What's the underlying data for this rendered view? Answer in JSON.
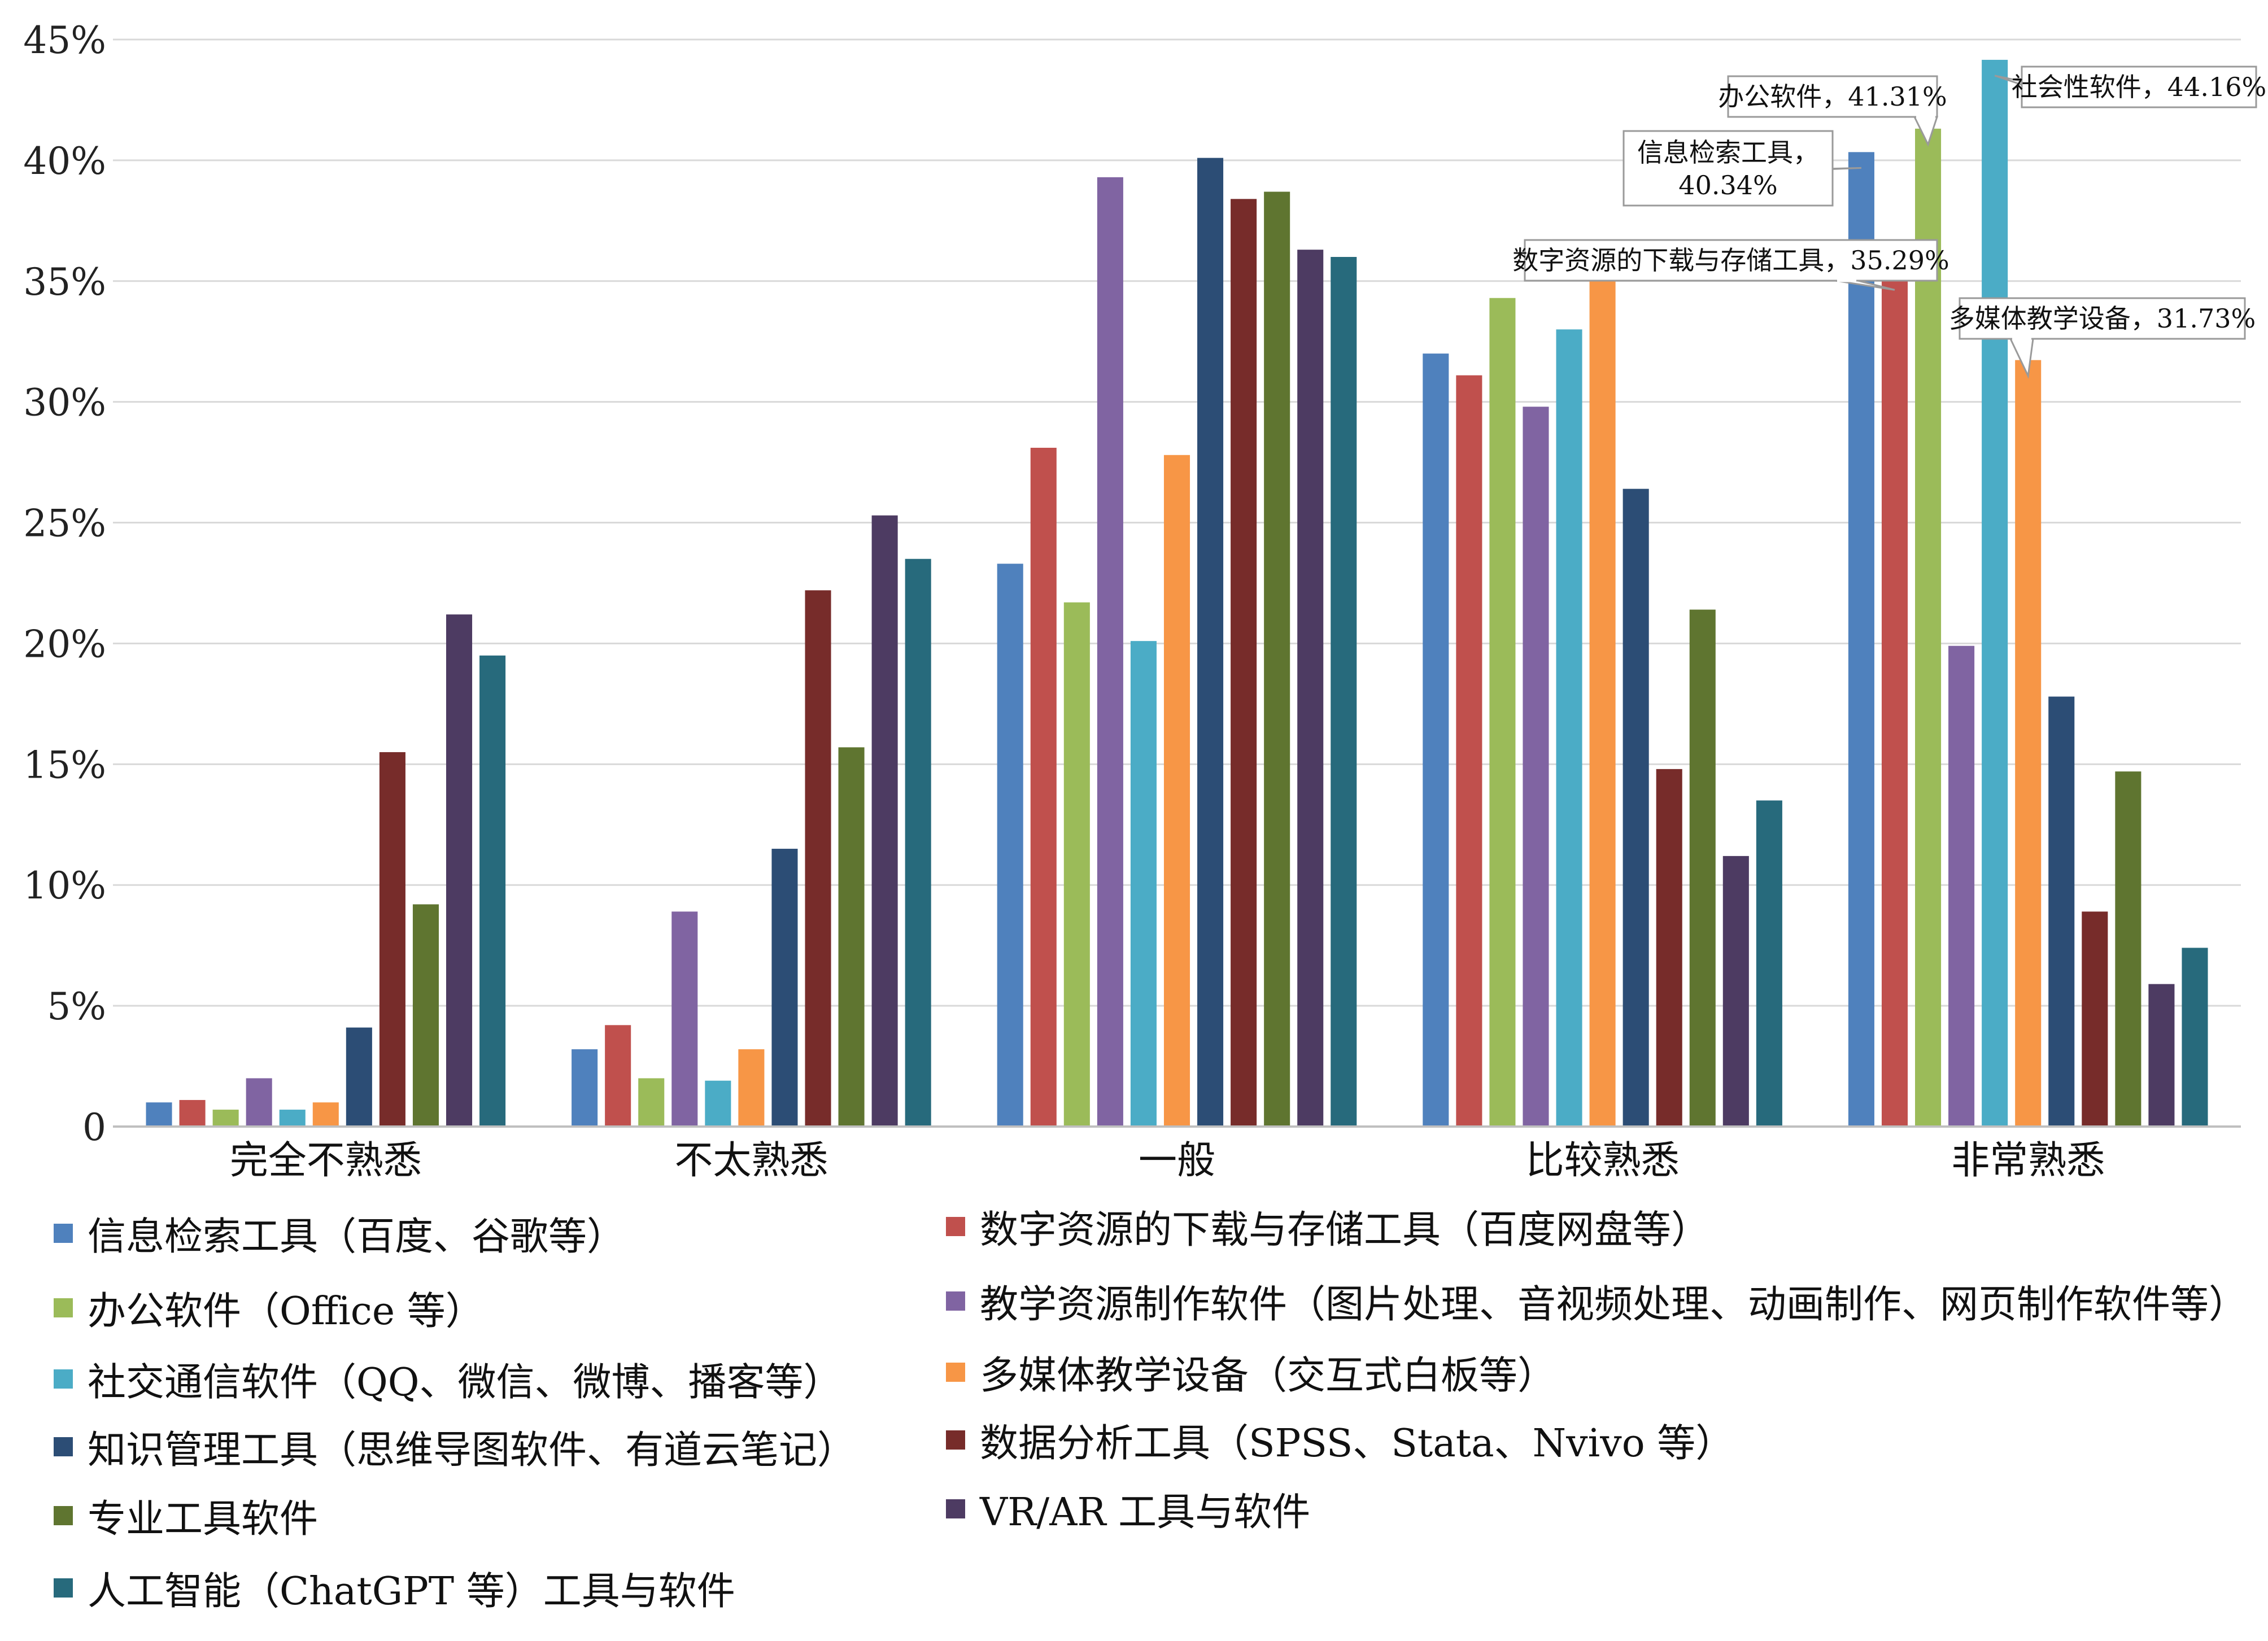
{
  "chart_data": {
    "type": "bar",
    "title": "",
    "xlabel": "",
    "ylabel": "",
    "ylim": [
      0,
      45
    ],
    "y_ticks": [
      {
        "value": 0,
        "label": "0"
      },
      {
        "value": 5,
        "label": "5%"
      },
      {
        "value": 10,
        "label": "10%"
      },
      {
        "value": 15,
        "label": "15%"
      },
      {
        "value": 20,
        "label": "20%"
      },
      {
        "value": 25,
        "label": "25%"
      },
      {
        "value": 30,
        "label": "30%"
      },
      {
        "value": 35,
        "label": "35%"
      },
      {
        "value": 40,
        "label": "40%"
      },
      {
        "value": 45,
        "label": "45%"
      }
    ],
    "grid": true,
    "legend_position": "bottom",
    "categories": [
      "完全不熟悉",
      "不太熟悉",
      "一般",
      "比较熟悉",
      "非常熟悉"
    ],
    "series": [
      {
        "name": "信息检索工具（百度、谷歌等）",
        "color": "#4F81BD",
        "values": [
          1.0,
          3.2,
          23.3,
          32.0,
          40.34
        ]
      },
      {
        "name": "数字资源的下载与存储工具（百度网盘等）",
        "color": "#C0504D",
        "values": [
          1.1,
          4.2,
          28.1,
          31.1,
          35.29
        ]
      },
      {
        "name": "办公软件（Office 等）",
        "color": "#9BBB59",
        "values": [
          0.7,
          2.0,
          21.7,
          34.3,
          41.31
        ]
      },
      {
        "name": "教学资源制作软件（图片处理、音视频处理、动画制作、网页制作软件等）",
        "color": "#8064A2",
        "values": [
          2.0,
          8.9,
          39.3,
          29.8,
          19.9
        ]
      },
      {
        "name": "社交通信软件（QQ、微信、微博、播客等）",
        "color": "#4BACC6",
        "values": [
          0.7,
          1.9,
          20.1,
          33.0,
          44.16
        ]
      },
      {
        "name": "多媒体教学设备（交互式白板等）",
        "color": "#F79646",
        "values": [
          1.0,
          3.2,
          27.8,
          35.2,
          31.73
        ]
      },
      {
        "name": "知识管理工具（思维导图软件、有道云笔记）",
        "color": "#2C4D75",
        "values": [
          4.1,
          11.5,
          40.1,
          26.4,
          17.8
        ]
      },
      {
        "name": "数据分析工具（SPSS、Stata、Nvivo 等）",
        "color": "#772C2A",
        "values": [
          15.5,
          22.2,
          38.4,
          14.8,
          8.9
        ]
      },
      {
        "name": "专业工具软件",
        "color": "#5F7530",
        "values": [
          9.2,
          15.7,
          38.7,
          21.4,
          14.7
        ]
      },
      {
        "name": "VR/AR 工具与软件",
        "color": "#4D3B62",
        "values": [
          21.2,
          25.3,
          36.3,
          11.2,
          5.9
        ]
      },
      {
        "name": "人工智能（ChatGPT 等）工具与软件",
        "color": "#276A7C",
        "values": [
          19.5,
          23.5,
          36.0,
          13.5,
          7.4
        ]
      }
    ],
    "annotations": [
      {
        "text": "信息检索工具，40.34%",
        "series": 0,
        "category": 4
      },
      {
        "text": "数字资源的下载与存储工具，35.29%",
        "series": 1,
        "category": 4
      },
      {
        "text": "办公软件，41.31%",
        "series": 2,
        "category": 4
      },
      {
        "text": "社会性软件，44.16%",
        "series": 4,
        "category": 4
      },
      {
        "text": "多媒体教学设备，31.73%",
        "series": 5,
        "category": 4
      }
    ]
  }
}
